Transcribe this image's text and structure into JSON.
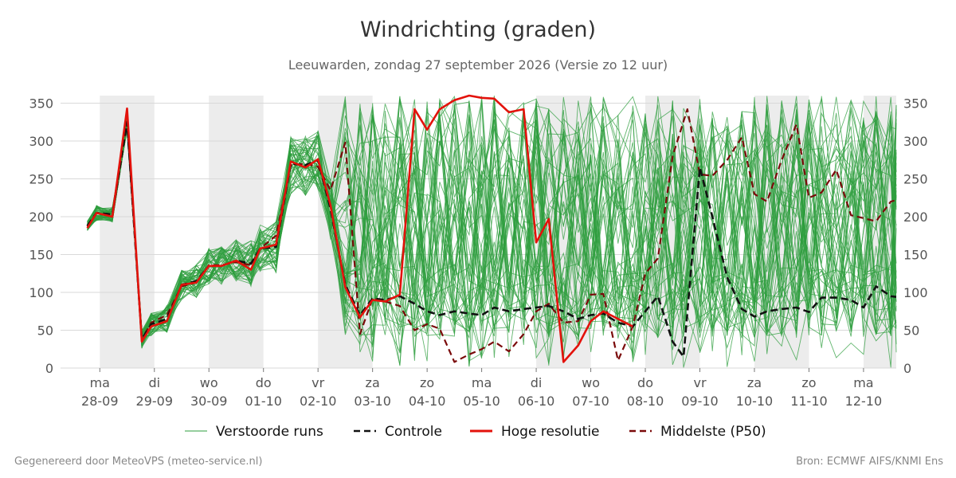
{
  "header": {
    "title": "Windrichting (graden)",
    "subtitle": "Leeuwarden, zondag 27 september 2026 (Versie zo 12 uur)"
  },
  "footer": {
    "left": "Gegenereerd door MeteoVPS (meteo-service.nl)",
    "right": "Bron: ECMWF AIFS/KNMI Ens"
  },
  "chart_data": {
    "type": "line",
    "title": "Windrichting (graden)",
    "x_unit": "days since 2026-09-28 00:00",
    "ylim": [
      0,
      360
    ],
    "yticks": [
      0,
      50,
      100,
      150,
      200,
      250,
      300,
      350
    ],
    "xlim": [
      -0.72,
      14.6
    ],
    "grid": true,
    "legend_placement": "bottom",
    "day_ticks": [
      {
        "x": 0,
        "day": "ma",
        "date": "28-09"
      },
      {
        "x": 1,
        "day": "di",
        "date": "29-09"
      },
      {
        "x": 2,
        "day": "wo",
        "date": "30-09"
      },
      {
        "x": 3,
        "day": "do",
        "date": "01-10"
      },
      {
        "x": 4,
        "day": "vr",
        "date": "02-10"
      },
      {
        "x": 5,
        "day": "za",
        "date": "03-10"
      },
      {
        "x": 6,
        "day": "zo",
        "date": "04-10"
      },
      {
        "x": 7,
        "day": "ma",
        "date": "05-10"
      },
      {
        "x": 8,
        "day": "di",
        "date": "06-10"
      },
      {
        "x": 9,
        "day": "wo",
        "date": "07-10"
      },
      {
        "x": 10,
        "day": "do",
        "date": "08-10"
      },
      {
        "x": 11,
        "day": "vr",
        "date": "09-10"
      },
      {
        "x": 12,
        "day": "za",
        "date": "10-10"
      },
      {
        "x": 13,
        "day": "zo",
        "date": "11-10"
      },
      {
        "x": 14,
        "day": "ma",
        "date": "12-10"
      }
    ],
    "shaded_bands": [
      [
        0,
        1
      ],
      [
        2,
        3
      ],
      [
        4,
        5
      ],
      [
        8,
        9
      ],
      [
        10,
        11
      ],
      [
        12,
        13
      ],
      [
        14,
        14.6
      ]
    ],
    "colors": {
      "perturbed": "#2e9e3e",
      "control": "#111111",
      "high_res": "#e3120b",
      "median": "#7a0a0a",
      "band": "#ececec",
      "grid": "#d9d9d9"
    },
    "legend": [
      {
        "key": "perturbed",
        "label": "Verstoorde runs",
        "style": "thin"
      },
      {
        "key": "control",
        "label": "Controle",
        "style": "dashed"
      },
      {
        "key": "high_res",
        "label": "Hoge resolutie",
        "style": "solid"
      },
      {
        "key": "median",
        "label": "Middelste (P50)",
        "style": "dashed"
      }
    ],
    "series": [
      {
        "name": "Hoge resolutie",
        "key": "high_res",
        "points": [
          [
            -0.23,
            185
          ],
          [
            -0.06,
            205
          ],
          [
            0.23,
            200
          ],
          [
            0.5,
            343
          ],
          [
            0.77,
            35
          ],
          [
            0.94,
            55
          ],
          [
            1.23,
            62
          ],
          [
            1.5,
            110
          ],
          [
            1.77,
            113
          ],
          [
            2,
            135
          ],
          [
            2.23,
            135
          ],
          [
            2.5,
            142
          ],
          [
            2.77,
            130
          ],
          [
            2.94,
            158
          ],
          [
            3.23,
            163
          ],
          [
            3.5,
            273
          ],
          [
            3.77,
            265
          ],
          [
            4,
            276
          ],
          [
            4.23,
            215
          ],
          [
            4.5,
            107
          ],
          [
            4.77,
            67
          ],
          [
            5,
            90
          ],
          [
            5.23,
            88
          ],
          [
            5.5,
            97
          ],
          [
            5.77,
            342
          ],
          [
            6,
            315
          ],
          [
            6.23,
            342
          ],
          [
            6.5,
            354
          ],
          [
            6.77,
            360
          ],
          [
            7,
            357
          ],
          [
            7.23,
            356
          ],
          [
            7.5,
            338
          ],
          [
            7.77,
            342
          ],
          [
            8,
            166
          ],
          [
            8.23,
            197
          ],
          [
            8.5,
            8
          ],
          [
            8.77,
            30
          ],
          [
            9,
            62
          ],
          [
            9.23,
            75
          ],
          [
            9.5,
            65
          ],
          [
            9.77,
            55
          ]
        ]
      },
      {
        "name": "Controle",
        "key": "control",
        "points": [
          [
            -0.23,
            188
          ],
          [
            -0.06,
            205
          ],
          [
            0.23,
            203
          ],
          [
            0.5,
            325
          ],
          [
            0.77,
            38
          ],
          [
            0.94,
            58
          ],
          [
            1.23,
            65
          ],
          [
            1.5,
            110
          ],
          [
            1.77,
            115
          ],
          [
            2,
            135
          ],
          [
            2.23,
            135
          ],
          [
            2.5,
            142
          ],
          [
            2.77,
            138
          ],
          [
            2.94,
            158
          ],
          [
            3.23,
            160
          ],
          [
            3.5,
            270
          ],
          [
            3.77,
            268
          ],
          [
            4,
            275
          ],
          [
            4.23,
            210
          ],
          [
            4.5,
            110
          ],
          [
            4.77,
            70
          ],
          [
            5,
            92
          ],
          [
            5.23,
            90
          ],
          [
            5.5,
            95
          ],
          [
            5.77,
            85
          ],
          [
            6,
            75
          ],
          [
            6.23,
            70
          ],
          [
            6.5,
            75
          ],
          [
            6.77,
            72
          ],
          [
            7,
            70
          ],
          [
            7.23,
            80
          ],
          [
            7.5,
            75
          ],
          [
            7.77,
            78
          ],
          [
            8,
            80
          ],
          [
            8.23,
            82
          ],
          [
            8.5,
            75
          ],
          [
            8.77,
            65
          ],
          [
            9,
            70
          ],
          [
            9.23,
            72
          ],
          [
            9.5,
            60
          ],
          [
            9.77,
            55
          ],
          [
            10,
            75
          ],
          [
            10.23,
            95
          ],
          [
            10.5,
            35
          ],
          [
            10.7,
            15
          ],
          [
            11,
            265
          ],
          [
            11.23,
            200
          ],
          [
            11.5,
            120
          ],
          [
            11.77,
            78
          ],
          [
            12,
            68
          ],
          [
            12.23,
            75
          ],
          [
            12.5,
            78
          ],
          [
            12.77,
            80
          ],
          [
            13,
            74
          ],
          [
            13.23,
            93
          ],
          [
            13.5,
            93
          ],
          [
            13.77,
            90
          ],
          [
            14,
            80
          ],
          [
            14.23,
            108
          ],
          [
            14.5,
            95
          ],
          [
            14.6,
            94
          ]
        ]
      },
      {
        "name": "Middelste (P50)",
        "key": "median",
        "points": [
          [
            -0.23,
            187
          ],
          [
            -0.06,
            205
          ],
          [
            0.23,
            200
          ],
          [
            0.5,
            325
          ],
          [
            0.77,
            38
          ],
          [
            0.94,
            60
          ],
          [
            1.23,
            70
          ],
          [
            1.5,
            108
          ],
          [
            1.77,
            113
          ],
          [
            2,
            136
          ],
          [
            2.23,
            136
          ],
          [
            2.5,
            140
          ],
          [
            2.77,
            136
          ],
          [
            2.94,
            158
          ],
          [
            3.23,
            175
          ],
          [
            3.5,
            268
          ],
          [
            3.77,
            270
          ],
          [
            4,
            266
          ],
          [
            4.23,
            235
          ],
          [
            4.5,
            298
          ],
          [
            4.77,
            45
          ],
          [
            5,
            92
          ],
          [
            5.23,
            88
          ],
          [
            5.5,
            82
          ],
          [
            5.77,
            50
          ],
          [
            6,
            58
          ],
          [
            6.23,
            52
          ],
          [
            6.5,
            8
          ],
          [
            6.77,
            18
          ],
          [
            7,
            25
          ],
          [
            7.23,
            35
          ],
          [
            7.5,
            22
          ],
          [
            7.77,
            45
          ],
          [
            8,
            75
          ],
          [
            8.23,
            85
          ],
          [
            8.5,
            60
          ],
          [
            8.77,
            62
          ],
          [
            9,
            97
          ],
          [
            9.23,
            98
          ],
          [
            9.5,
            10
          ],
          [
            9.77,
            55
          ],
          [
            10,
            125
          ],
          [
            10.23,
            145
          ],
          [
            10.5,
            280
          ],
          [
            10.77,
            342
          ],
          [
            11,
            256
          ],
          [
            11.23,
            254
          ],
          [
            11.5,
            275
          ],
          [
            11.77,
            305
          ],
          [
            12,
            230
          ],
          [
            12.23,
            220
          ],
          [
            12.5,
            275
          ],
          [
            12.77,
            322
          ],
          [
            13,
            225
          ],
          [
            13.23,
            232
          ],
          [
            13.5,
            262
          ],
          [
            13.77,
            202
          ],
          [
            14,
            198
          ],
          [
            14.23,
            194
          ],
          [
            14.5,
            220
          ],
          [
            14.6,
            222
          ]
        ]
      }
    ]
  }
}
